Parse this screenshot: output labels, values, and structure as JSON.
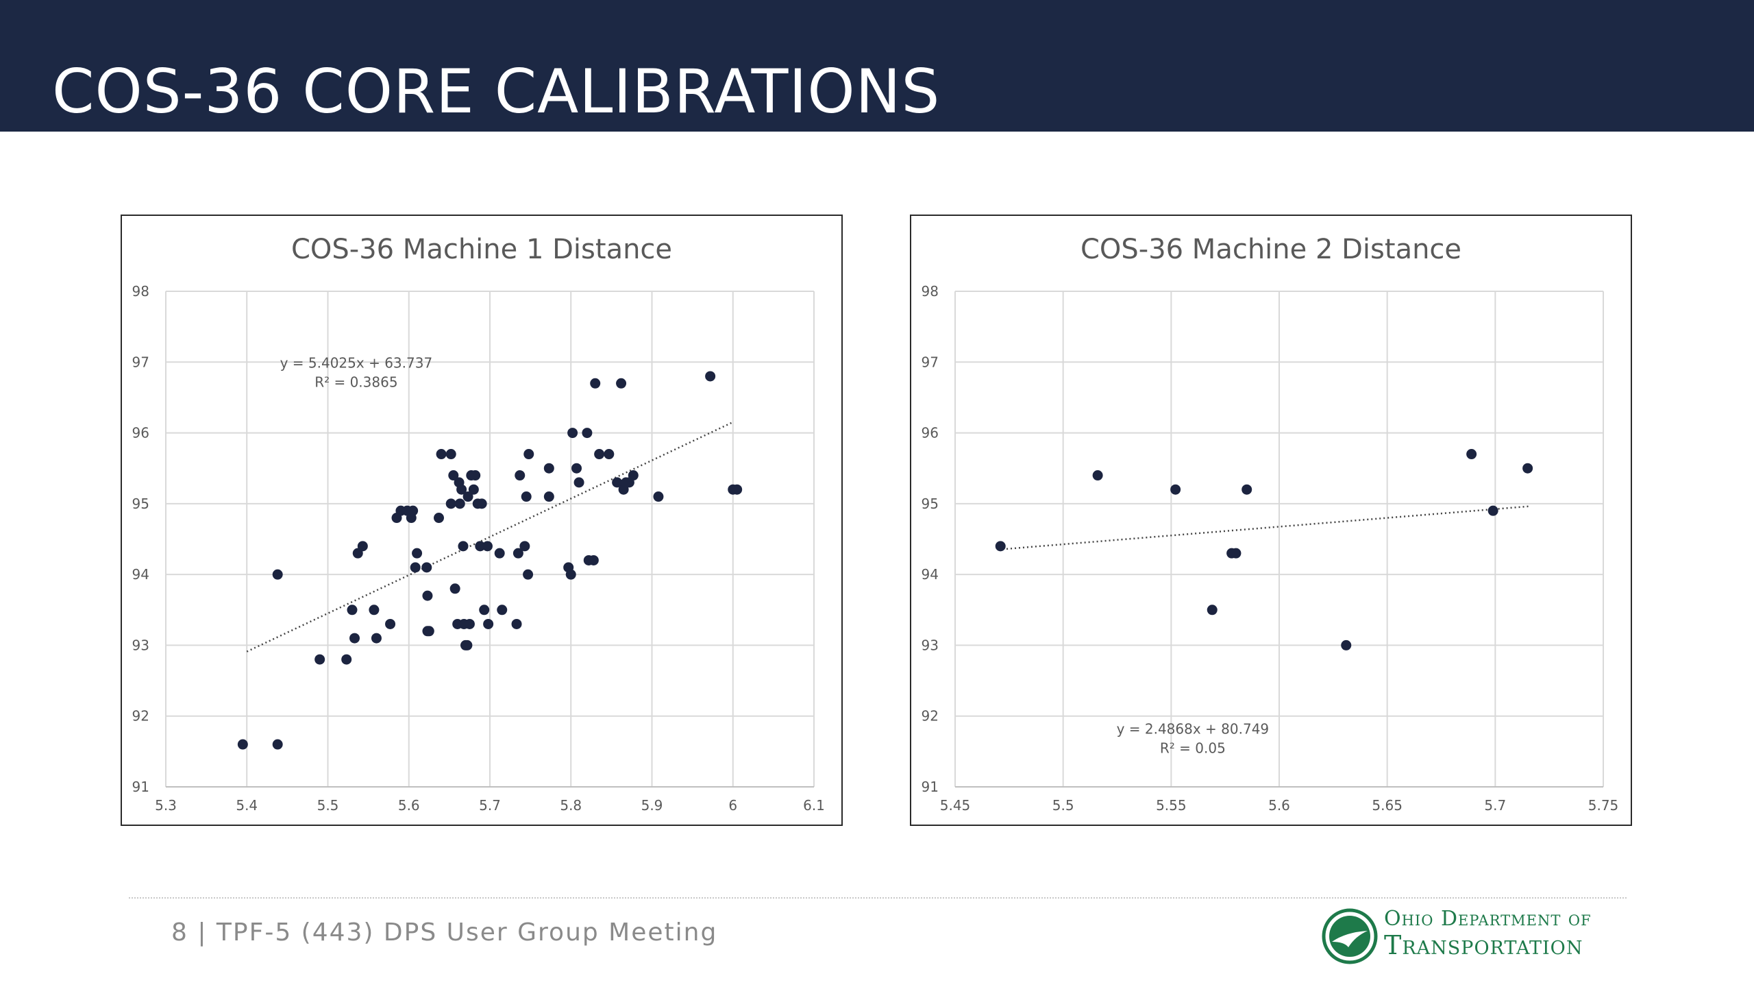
{
  "header": {
    "title": "COS-36 CORE CALIBRATIONS"
  },
  "footer": {
    "text": "8 |  TPF-5 (443) DPS User Group Meeting"
  },
  "logo": {
    "line1": "Ohio Department of",
    "line2": "Transportation",
    "color": "#1e7a4a"
  },
  "colors": {
    "header_bg": "#1c2844",
    "point": "#1c2440",
    "grid": "#d9d9d9",
    "text": "#595959"
  },
  "chart_data": [
    {
      "type": "scatter",
      "title": "COS-36 Machine 1 Distance",
      "xlim": [
        5.3,
        6.1
      ],
      "ylim": [
        91,
        98
      ],
      "xticks": [
        "5.3",
        "5.4",
        "5.5",
        "5.6",
        "5.7",
        "5.8",
        "5.9",
        "6",
        "6.1"
      ],
      "yticks": [
        "91",
        "92",
        "93",
        "94",
        "95",
        "96",
        "97",
        "98"
      ],
      "grid": true,
      "trendline": {
        "slope": 5.4025,
        "intercept": 63.737,
        "x_range": [
          5.4,
          6.0
        ],
        "equation": "y = 5.4025x + 63.737",
        "r2": "R² = 0.3865",
        "label_anchor": [
          5.535,
          96.92
        ]
      },
      "points": [
        [
          5.395,
          91.6
        ],
        [
          5.438,
          91.6
        ],
        [
          5.438,
          94.0
        ],
        [
          5.49,
          92.8
        ],
        [
          5.523,
          92.8
        ],
        [
          5.53,
          93.5
        ],
        [
          5.533,
          93.1
        ],
        [
          5.537,
          94.3
        ],
        [
          5.543,
          94.4
        ],
        [
          5.557,
          93.5
        ],
        [
          5.56,
          93.1
        ],
        [
          5.577,
          93.3
        ],
        [
          5.585,
          94.8
        ],
        [
          5.59,
          94.9
        ],
        [
          5.598,
          94.9
        ],
        [
          5.603,
          94.8
        ],
        [
          5.605,
          94.9
        ],
        [
          5.608,
          94.1
        ],
        [
          5.61,
          94.3
        ],
        [
          5.622,
          94.1
        ],
        [
          5.623,
          93.7
        ],
        [
          5.623,
          93.2
        ],
        [
          5.625,
          93.2
        ],
        [
          5.637,
          94.8
        ],
        [
          5.64,
          95.7
        ],
        [
          5.652,
          95.7
        ],
        [
          5.652,
          95.0
        ],
        [
          5.655,
          95.4
        ],
        [
          5.657,
          93.8
        ],
        [
          5.66,
          93.3
        ],
        [
          5.662,
          95.3
        ],
        [
          5.663,
          95.0
        ],
        [
          5.665,
          95.2
        ],
        [
          5.667,
          94.4
        ],
        [
          5.668,
          93.3
        ],
        [
          5.67,
          93.0
        ],
        [
          5.672,
          93.0
        ],
        [
          5.673,
          95.1
        ],
        [
          5.675,
          93.3
        ],
        [
          5.677,
          95.4
        ],
        [
          5.68,
          95.2
        ],
        [
          5.682,
          95.4
        ],
        [
          5.685,
          95.0
        ],
        [
          5.688,
          94.4
        ],
        [
          5.69,
          95.0
        ],
        [
          5.693,
          93.5
        ],
        [
          5.697,
          94.4
        ],
        [
          5.698,
          93.3
        ],
        [
          5.712,
          94.3
        ],
        [
          5.715,
          93.5
        ],
        [
          5.733,
          93.3
        ],
        [
          5.735,
          94.3
        ],
        [
          5.737,
          95.4
        ],
        [
          5.743,
          94.4
        ],
        [
          5.745,
          95.1
        ],
        [
          5.747,
          94.0
        ],
        [
          5.748,
          95.7
        ],
        [
          5.773,
          95.5
        ],
        [
          5.773,
          95.1
        ],
        [
          5.797,
          94.1
        ],
        [
          5.8,
          94.0
        ],
        [
          5.802,
          96.0
        ],
        [
          5.807,
          95.5
        ],
        [
          5.81,
          95.3
        ],
        [
          5.82,
          96.0
        ],
        [
          5.822,
          94.2
        ],
        [
          5.828,
          94.2
        ],
        [
          5.83,
          96.7
        ],
        [
          5.835,
          95.7
        ],
        [
          5.847,
          95.7
        ],
        [
          5.857,
          95.3
        ],
        [
          5.862,
          96.7
        ],
        [
          5.865,
          95.2
        ],
        [
          5.868,
          95.3
        ],
        [
          5.872,
          95.3
        ],
        [
          5.877,
          95.4
        ],
        [
          5.908,
          95.1
        ],
        [
          5.972,
          96.8
        ],
        [
          6.0,
          95.2
        ],
        [
          6.005,
          95.2
        ]
      ]
    },
    {
      "type": "scatter",
      "title": "COS-36 Machine 2 Distance",
      "xlim": [
        5.45,
        5.75
      ],
      "ylim": [
        91,
        98
      ],
      "xticks": [
        "5.45",
        "5.5",
        "5.55",
        "5.6",
        "5.65",
        "5.7",
        "5.75"
      ],
      "yticks": [
        "91",
        "92",
        "93",
        "94",
        "95",
        "96",
        "97",
        "98"
      ],
      "grid": true,
      "trendline": {
        "slope": 2.4868,
        "intercept": 80.749,
        "x_range": [
          5.47,
          5.716
        ],
        "equation": "y = 2.4868x + 80.749",
        "r2": "R² = 0.05",
        "label_anchor": [
          5.56,
          91.75
        ]
      },
      "points": [
        [
          5.471,
          94.4
        ],
        [
          5.516,
          95.4
        ],
        [
          5.552,
          95.2
        ],
        [
          5.569,
          93.5
        ],
        [
          5.578,
          94.3
        ],
        [
          5.58,
          94.3
        ],
        [
          5.585,
          95.2
        ],
        [
          5.631,
          93.0
        ],
        [
          5.689,
          95.7
        ],
        [
          5.699,
          94.9
        ],
        [
          5.715,
          95.5
        ]
      ]
    }
  ]
}
